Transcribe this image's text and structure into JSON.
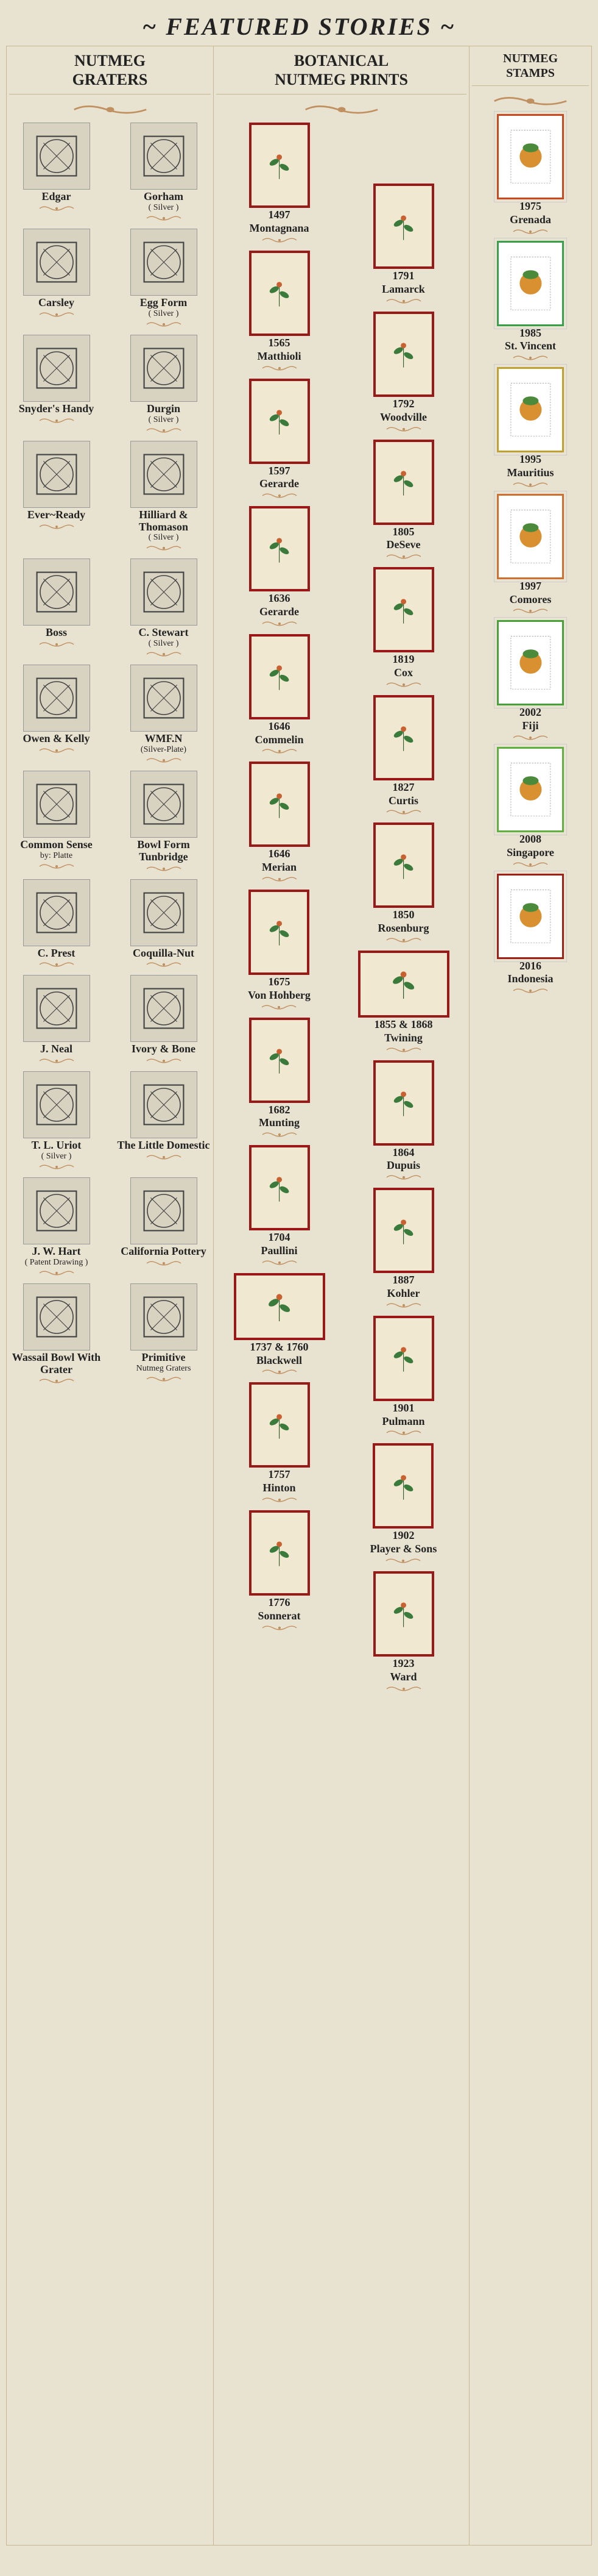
{
  "title": "~ FEATURED STORIES ~",
  "columns": {
    "graters": {
      "header": "NUTMEG\nGRATERS"
    },
    "prints": {
      "header": "BOTANICAL\nNUTMEG PRINTS"
    },
    "stamps": {
      "header": "NUTMEG\nSTAMPS"
    }
  },
  "graters": [
    {
      "label": "Edgar",
      "sub": ""
    },
    {
      "label": "Gorham",
      "sub": "( Silver )"
    },
    {
      "label": "Carsley",
      "sub": ""
    },
    {
      "label": "Egg Form",
      "sub": "( Silver )"
    },
    {
      "label": "Snyder's Handy",
      "sub": ""
    },
    {
      "label": "Durgin",
      "sub": "( Silver )"
    },
    {
      "label": "Ever~Ready",
      "sub": ""
    },
    {
      "label": "Hilliard & Thomason",
      "sub": "( Silver )"
    },
    {
      "label": "Boss",
      "sub": ""
    },
    {
      "label": "C. Stewart",
      "sub": "( Silver )"
    },
    {
      "label": "Owen & Kelly",
      "sub": ""
    },
    {
      "label": "WMF.N",
      "sub": "(Silver-Plate)"
    },
    {
      "label": "Common Sense",
      "sub": "by: Platte"
    },
    {
      "label": "Bowl Form Tunbridge",
      "sub": ""
    },
    {
      "label": "C. Prest",
      "sub": ""
    },
    {
      "label": "Coquilla-Nut",
      "sub": ""
    },
    {
      "label": "J. Neal",
      "sub": ""
    },
    {
      "label": "Ivory & Bone",
      "sub": ""
    },
    {
      "label": "T. L. Uriot",
      "sub": "( Silver )"
    },
    {
      "label": "The Little Domestic",
      "sub": ""
    },
    {
      "label": "J. W. Hart",
      "sub": "( Patent Drawing )"
    },
    {
      "label": "California Pottery",
      "sub": ""
    },
    {
      "label": "Wassail Bowl With Grater",
      "sub": ""
    },
    {
      "label": "Primitive",
      "sub": "Nutmeg Graters"
    }
  ],
  "printsLeft": [
    {
      "year": "1497",
      "name": "Montagnana"
    },
    {
      "year": "1565",
      "name": "Matthioli"
    },
    {
      "year": "1597",
      "name": "Gerarde"
    },
    {
      "year": "1636",
      "name": "Gerarde"
    },
    {
      "year": "1646",
      "name": "Commelin"
    },
    {
      "year": "1646",
      "name": "Merian"
    },
    {
      "year": "1675",
      "name": "Von Hohberg"
    },
    {
      "year": "1682",
      "name": "Munting"
    },
    {
      "year": "1704",
      "name": "Paullini"
    },
    {
      "year": "1737 & 1760",
      "name": "Blackwell"
    },
    {
      "year": "1757",
      "name": "Hinton"
    },
    {
      "year": "1776",
      "name": "Sonnerat"
    }
  ],
  "printsRight": [
    {
      "year": "1791",
      "name": "Lamarck"
    },
    {
      "year": "1792",
      "name": "Woodville"
    },
    {
      "year": "1805",
      "name": "DeSeve"
    },
    {
      "year": "1819",
      "name": "Cox"
    },
    {
      "year": "1827",
      "name": "Curtis"
    },
    {
      "year": "1850",
      "name": "Rosenburg"
    },
    {
      "year": "1855 & 1868",
      "name": "Twining"
    },
    {
      "year": "1864",
      "name": "Dupuis"
    },
    {
      "year": "1887",
      "name": "Kohler"
    },
    {
      "year": "1901",
      "name": "Pulmann"
    },
    {
      "year": "1902",
      "name": "Player & Sons"
    },
    {
      "year": "1923",
      "name": "Ward"
    }
  ],
  "stamps": [
    {
      "year": "1975",
      "country": "Grenada",
      "color": "#c84820"
    },
    {
      "year": "1985",
      "country": "St. Vincent",
      "color": "#38a048"
    },
    {
      "year": "1995",
      "country": "Mauritius",
      "color": "#c0a030"
    },
    {
      "year": "1997",
      "country": "Comores",
      "color": "#d07030"
    },
    {
      "year": "2002",
      "country": "Fiji",
      "color": "#48a038"
    },
    {
      "year": "2008",
      "country": "Singapore",
      "color": "#60b040"
    },
    {
      "year": "2016",
      "country": "Indonesia",
      "color": "#a02018"
    }
  ],
  "colors": {
    "background": "#e8e2d0",
    "frameRed": "#9a1818",
    "flourish": "#c08850",
    "text": "#222222"
  }
}
